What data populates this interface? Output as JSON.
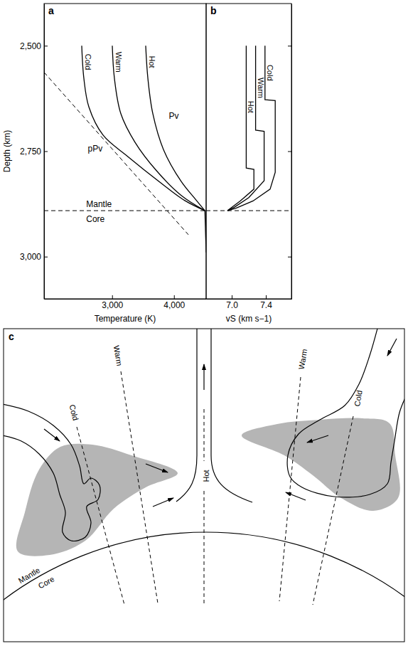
{
  "chart_data": [
    {
      "type": "line",
      "panel": "a",
      "color": "#000000",
      "x_label": "Temperature (K)",
      "y_label": "Depth (km)",
      "xlim": [
        1900,
        4520
      ],
      "ylim": [
        3100,
        2400
      ],
      "xticks": [
        {
          "value": 3000,
          "label": "3,000"
        },
        {
          "value": 4000,
          "label": "4,000"
        }
      ],
      "yticks": [
        {
          "value": 2500,
          "label": "2,500"
        },
        {
          "value": 2750,
          "label": "2,750"
        },
        {
          "value": 3000,
          "label": "3,000"
        }
      ],
      "series": [
        {
          "name": "Cold",
          "x": [
            2509,
            2543,
            2624,
            2854,
            3256,
            3830,
            4175,
            4500
          ],
          "values": [
            2500,
            2577,
            2645,
            2712,
            2763,
            2830,
            2867,
            2891
          ]
        },
        {
          "name": "Warm",
          "x": [
            3003,
            3037,
            3141,
            3371,
            3716,
            4118,
            4500
          ],
          "values": [
            2500,
            2577,
            2661,
            2729,
            2796,
            2855,
            2891
          ]
        },
        {
          "name": "Hot",
          "x": [
            3543,
            3578,
            3658,
            3830,
            4118,
            4348,
            4500
          ],
          "values": [
            2500,
            2577,
            2661,
            2746,
            2822,
            2864,
            2891
          ]
        },
        {
          "x": [
            1900,
            4233
          ],
          "values": [
            2563,
            2948
          ],
          "line_style": "dashed"
        },
        {
          "x": [
            4500,
            4520
          ],
          "values": [
            2891,
            2990
          ]
        },
        {
          "x": [
            1900,
            4520
          ],
          "values": [
            2891,
            2891
          ],
          "line_style": "dashed"
        }
      ],
      "annotations": [
        "Pv",
        "pPv",
        "Mantle",
        "Core"
      ]
    },
    {
      "type": "line",
      "panel": "b",
      "color": "#000000",
      "x_label": "vS (km s−1)",
      "xlim": [
        6.7,
        7.7
      ],
      "ylim": [
        3100,
        2400
      ],
      "xticks": [
        {
          "value": 7,
          "label": "7.0"
        },
        7.4
      ],
      "yticks": [
        2500,
        2750,
        3000
      ],
      "tick_labels": "x",
      "series": [
        {
          "name": "Cold",
          "x": [
            7.39,
            7.39,
            7.51,
            7.51,
            7.45,
            7.25,
            7.05,
            6.95
          ],
          "values": [
            2500,
            2628,
            2630,
            2800,
            2840,
            2868,
            2885,
            2891
          ]
        },
        {
          "name": "Warm",
          "x": [
            7.28,
            7.28,
            7.38,
            7.38,
            7.2,
            7.03,
            6.95
          ],
          "values": [
            2500,
            2700,
            2703,
            2820,
            2860,
            2883,
            2891
          ]
        },
        {
          "name": "Hot",
          "x": [
            7.17,
            7.17,
            7.26,
            7.26,
            7.1,
            6.95
          ],
          "values": [
            2500,
            2790,
            2793,
            2840,
            2868,
            2891
          ]
        },
        {
          "x": [
            6.7,
            7.7
          ],
          "values": [
            2891,
            2891
          ],
          "line_style": "dashed"
        }
      ]
    }
  ],
  "diagram": {
    "panel": "c",
    "flows": [
      {
        "label": "Cold"
      },
      {
        "label": "Warm"
      },
      {
        "label": "Hot"
      },
      {
        "label": "Warm"
      },
      {
        "label": "Cold"
      }
    ],
    "boundary": {
      "upper": "Mantle",
      "lower": "Core"
    }
  }
}
